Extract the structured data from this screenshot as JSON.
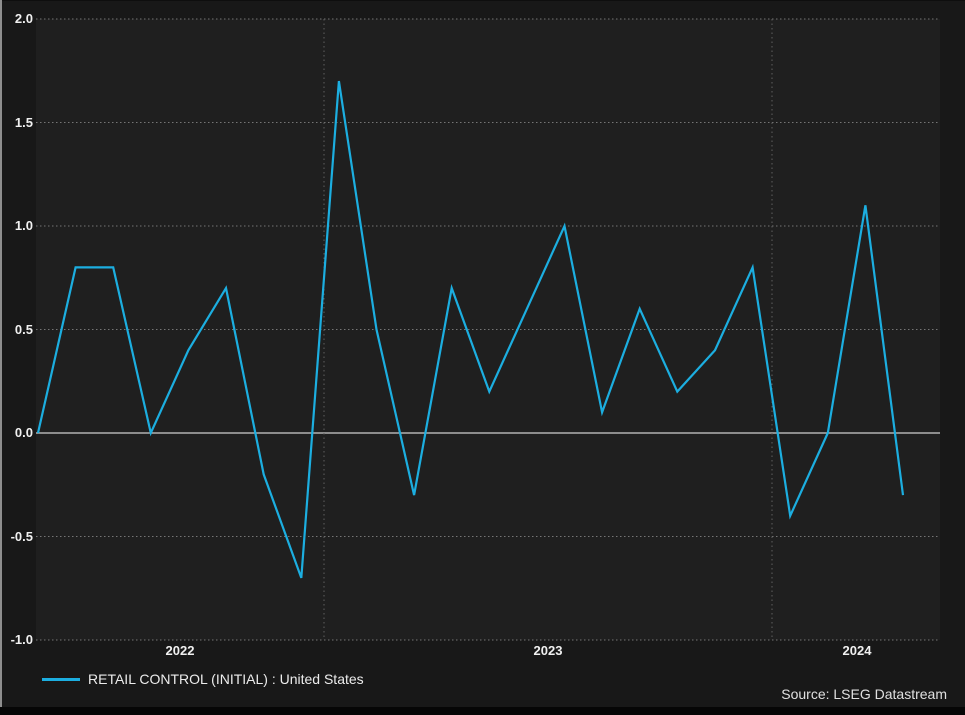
{
  "window": {
    "kind": "datastream-chart-window"
  },
  "colors": {
    "window_bg": "#181818",
    "plot_bg": "#1f1f1f",
    "line": "#1caee0",
    "grid_dotted": "#757575",
    "grid_vertical": "#5f5f5f",
    "zero_line": "#cfcfcf",
    "tick_text": "#f0f0f0",
    "legend_text": "#ececec",
    "source_text": "#e0e0e0",
    "bottom_bar": "#060606",
    "left_edge": "#8e8e8e"
  },
  "chart_data": {
    "type": "line",
    "title": "",
    "xlabel": "",
    "ylabel": "",
    "ylim": [
      -1.0,
      2.0
    ],
    "grid": "dotted horizontal every 0.5; dotted vertical at year boundaries; solid line at 0.0",
    "legend_position": "bottom-left",
    "x": [
      "2022-05",
      "2022-06",
      "2022-07",
      "2022-08",
      "2022-09",
      "2022-10",
      "2022-11",
      "2022-12",
      "2023-01",
      "2023-02",
      "2023-03",
      "2023-04",
      "2023-05",
      "2023-06",
      "2023-07",
      "2023-08",
      "2023-09",
      "2023-10",
      "2023-11",
      "2023-12",
      "2024-01",
      "2024-02",
      "2024-03",
      "2024-04"
    ],
    "series": [
      {
        "name": "RETAIL CONTROL (INITIAL) : United States",
        "color": "#1caee0",
        "values": [
          0.0,
          0.8,
          0.8,
          0.0,
          0.4,
          0.7,
          -0.2,
          -0.7,
          1.7,
          0.5,
          -0.3,
          0.7,
          0.2,
          0.6,
          1.0,
          0.1,
          0.6,
          0.2,
          0.4,
          0.8,
          -0.4,
          0.0,
          1.1,
          -0.3
        ]
      }
    ],
    "y_tick_labels": [
      "2.0",
      "1.5",
      "1.0",
      "0.5",
      "0.0",
      "-0.5",
      "-1.0"
    ],
    "x_tick_labels": [
      "2022",
      "2023",
      "2024"
    ]
  },
  "source": {
    "text": "Source: LSEG Datastream"
  }
}
